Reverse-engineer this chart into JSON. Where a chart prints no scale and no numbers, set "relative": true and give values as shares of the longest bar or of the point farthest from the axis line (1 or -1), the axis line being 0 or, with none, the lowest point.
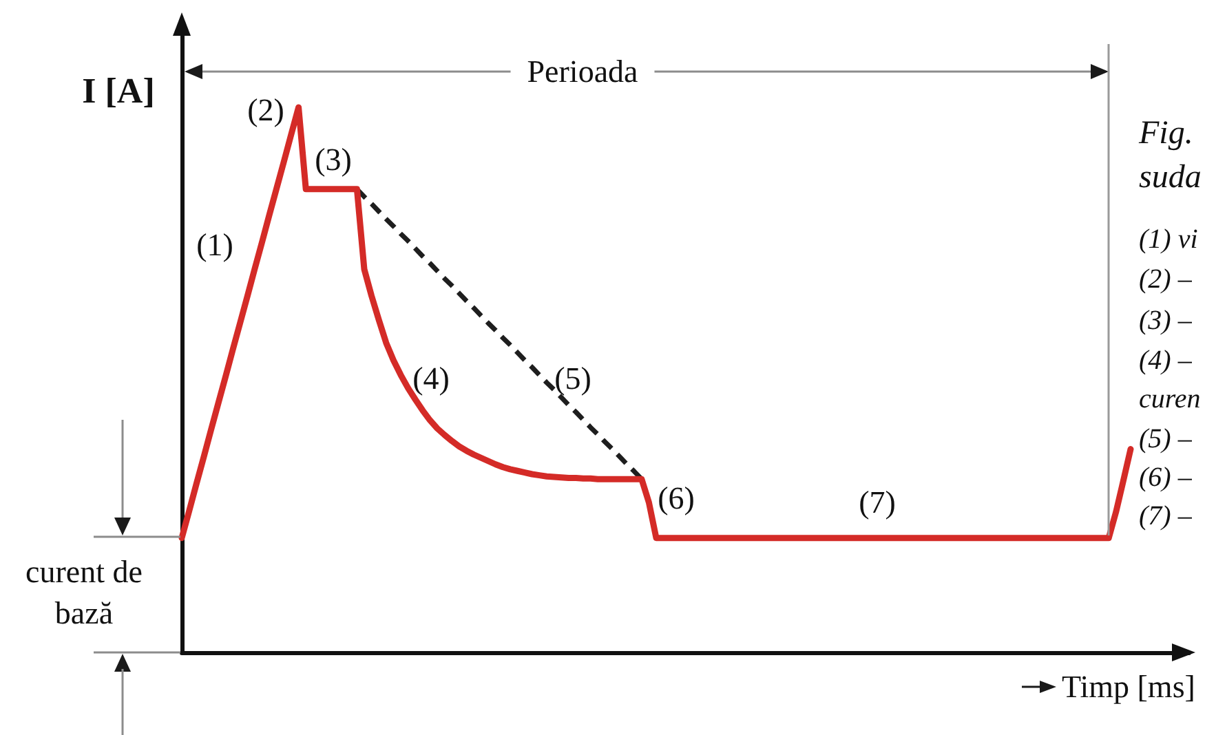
{
  "chart_data": {
    "type": "line",
    "relative": true,
    "xlabel": "Timp [ms]",
    "ylabel": "I [A]",
    "annotations": [
      "Perioada",
      "(1)",
      "(2)",
      "(3)",
      "(4)",
      "(5)",
      "(6)",
      "(7)",
      "curent de bază",
      "Fig.",
      "suda",
      "(1) vi",
      "(2) –",
      "(3) –",
      "(4) –",
      "curen",
      "(5) –",
      "(6) –",
      "(7) –"
    ],
    "categories": [
      null,
      null,
      null,
      null,
      null,
      null,
      null,
      null,
      null,
      null,
      null,
      null,
      null,
      null,
      null,
      null,
      null,
      null,
      null,
      null,
      null,
      null,
      null,
      null,
      null,
      null,
      null,
      null,
      null,
      null,
      null,
      null,
      null,
      null,
      null,
      null,
      null,
      null,
      null,
      null,
      null,
      null,
      null,
      null,
      null,
      null,
      null,
      null,
      null,
      null,
      null,
      null,
      null,
      null,
      null,
      null,
      null,
      null,
      null,
      null,
      null,
      null,
      null,
      null,
      null,
      null,
      null,
      null,
      null,
      null,
      null,
      null,
      null,
      null,
      null,
      null,
      null,
      null,
      null,
      null,
      null,
      null,
      null,
      null,
      null,
      null,
      null,
      null,
      null,
      null,
      null,
      null,
      null,
      null,
      null,
      null,
      null,
      null,
      null,
      null,
      null,
      null,
      null,
      null,
      null,
      null,
      null,
      null,
      null,
      null,
      null,
      null,
      null,
      null,
      null,
      null,
      null,
      null,
      null,
      null,
      null,
      null,
      null,
      null,
      null,
      null,
      null,
      null,
      null,
      null,
      null,
      null,
      null,
      null,
      null,
      null,
      null,
      null,
      null
    ],
    "series": [
      {
        "color": "#d42b27",
        "line_style": "solid",
        "values": [
          0.21,
          0.259,
          0.309,
          0.358,
          0.408,
          0.457,
          0.506,
          0.556,
          0.605,
          0.654,
          0.704,
          0.753,
          0.803,
          0.852,
          0.901,
          0.951,
          1,
          0.85,
          0.85,
          0.85,
          0.85,
          0.85,
          0.85,
          0.85,
          0.85,
          0.703,
          0.654,
          0.61,
          0.568,
          0.536,
          0.509,
          0.485,
          0.464,
          0.444,
          0.426,
          0.411,
          0.399,
          0.388,
          0.378,
          0.37,
          0.363,
          0.357,
          0.351,
          0.345,
          0.34,
          0.336,
          0.333,
          0.33,
          0.327,
          0.325,
          0.323,
          0.322,
          0.321,
          0.32,
          0.32,
          0.319,
          0.319,
          0.318,
          0.318,
          0.318,
          0.318,
          0.318,
          0.318,
          0.318,
          0.275,
          0.21,
          0.21,
          0.21,
          0.21,
          0.21,
          0.21,
          0.21,
          0.21,
          0.21,
          0.21,
          0.21,
          0.21,
          0.21,
          0.21,
          0.21,
          0.21,
          0.21,
          0.21,
          0.21,
          0.21,
          0.21,
          0.21,
          0.21,
          0.21,
          0.21,
          0.21,
          0.21,
          0.21,
          0.21,
          0.21,
          0.21,
          0.21,
          0.21,
          0.21,
          0.21,
          0.21,
          0.21,
          0.21,
          0.21,
          0.21,
          0.21,
          0.21,
          0.21,
          0.21,
          0.21,
          0.21,
          0.21,
          0.21,
          0.21,
          0.21,
          0.21,
          0.21,
          0.21,
          0.21,
          0.21,
          0.21,
          0.21,
          0.21,
          0.21,
          0.21,
          0.21,
          0.21,
          0.21,
          0.258,
          0.315,
          0.373,
          null,
          null,
          null,
          null,
          null,
          null,
          null,
          null
        ]
      },
      {
        "color": "#1e1e1e",
        "line_style": "dashed",
        "values": [
          null,
          null,
          null,
          null,
          null,
          null,
          null,
          null,
          null,
          null,
          null,
          null,
          null,
          null,
          null,
          null,
          null,
          null,
          null,
          null,
          null,
          null,
          null,
          null,
          0.85,
          0.836,
          0.823,
          0.809,
          0.795,
          0.782,
          0.768,
          0.755,
          0.741,
          0.727,
          0.714,
          0.7,
          0.686,
          0.673,
          0.659,
          0.645,
          0.632,
          0.618,
          0.604,
          0.591,
          0.577,
          0.564,
          0.55,
          0.536,
          0.523,
          0.509,
          0.495,
          0.482,
          0.468,
          0.454,
          0.441,
          0.427,
          0.413,
          0.4,
          0.386,
          0.373,
          0.359,
          0.345,
          0.332,
          0.318,
          null,
          null,
          null,
          null,
          null,
          null,
          null,
          null,
          null,
          null,
          null,
          null,
          null,
          null,
          null,
          null,
          null,
          null,
          null,
          null,
          null,
          null,
          null,
          null,
          null,
          null,
          null,
          null,
          null,
          null,
          null,
          null,
          null,
          null,
          null,
          null,
          null,
          null,
          null,
          null,
          null,
          null,
          null,
          null,
          null,
          null,
          null,
          null,
          null,
          null,
          null,
          null,
          null,
          null,
          null,
          null,
          null,
          null,
          null,
          null,
          null,
          null,
          null,
          null,
          null,
          null,
          null,
          null,
          null,
          null,
          null,
          null,
          null,
          null,
          null
        ]
      }
    ]
  }
}
